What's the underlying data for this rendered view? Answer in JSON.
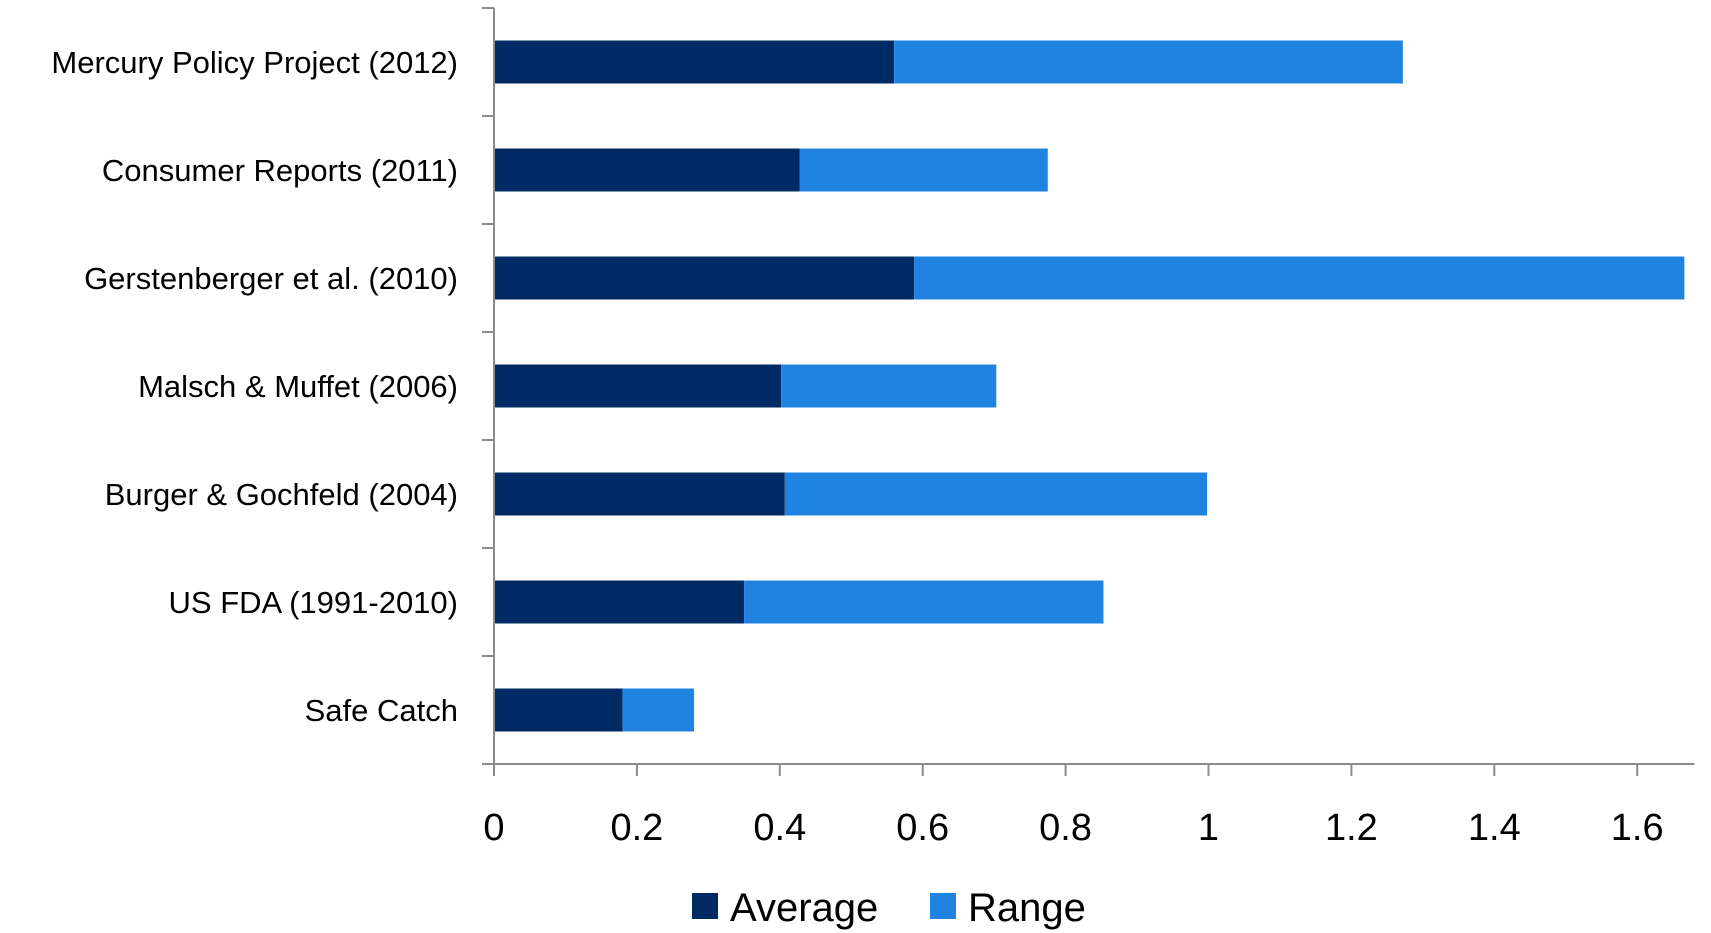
{
  "chart_data": {
    "type": "bar",
    "orientation": "horizontal",
    "stacked": true,
    "categories": [
      "Mercury Policy Project (2012)",
      "Consumer Reports (2011)",
      "Gerstenberger et al. (2010)",
      "Malsch & Muffet (2006)",
      "Burger & Gochfeld (2004)",
      "US FDA (1991-2010)",
      "Safe Catch"
    ],
    "series": [
      {
        "name": "Average",
        "color": "#002a63",
        "values": [
          0.56,
          0.428,
          0.588,
          0.402,
          0.407,
          0.35,
          0.18
        ]
      },
      {
        "name": "Range",
        "color": "#2083e2",
        "values": [
          0.712,
          0.347,
          1.078,
          0.301,
          0.591,
          0.503,
          0.1
        ]
      }
    ],
    "xlim": [
      0,
      1.68
    ],
    "xticks": [
      0,
      0.2,
      0.4,
      0.6,
      0.8,
      1,
      1.2,
      1.4,
      1.6
    ],
    "xtick_labels": [
      "0",
      "0.2",
      "0.4",
      "0.6",
      "0.8",
      "1",
      "1.2",
      "1.4",
      "1.6"
    ],
    "title": "",
    "xlabel": "",
    "ylabel": "",
    "grid": false,
    "legend": {
      "position": "bottom",
      "entries": [
        "Average",
        "Range"
      ]
    }
  }
}
